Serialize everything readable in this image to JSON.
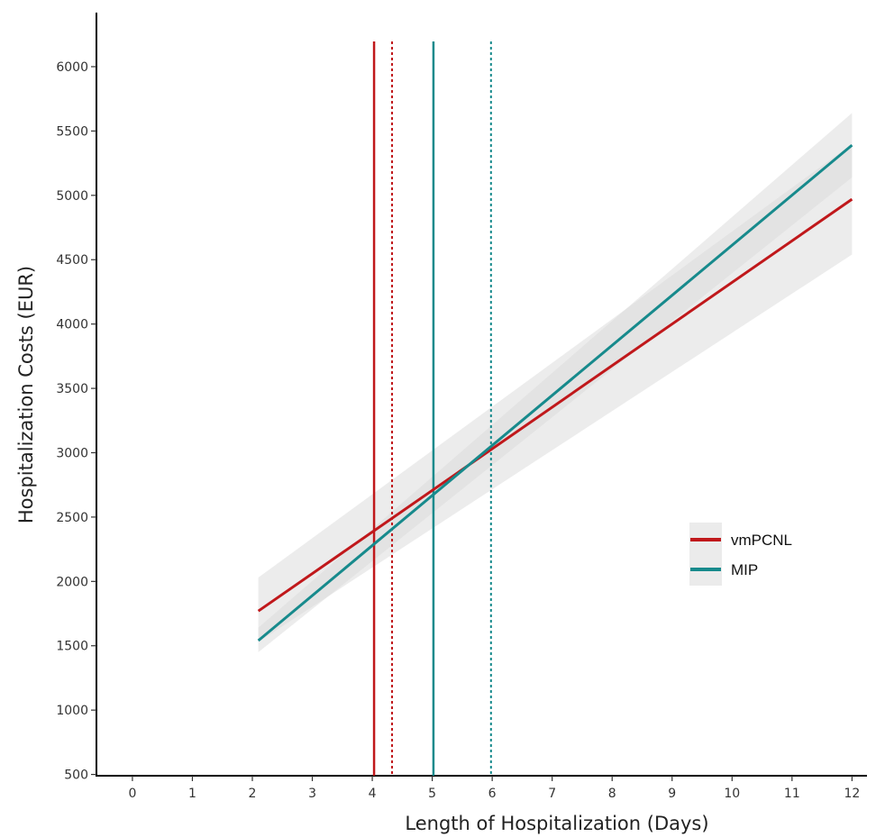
{
  "chart_data": {
    "type": "line",
    "xlabel": "Length of Hospitalization (Days)",
    "ylabel": "Hospitalization Costs (EUR)",
    "xlim": [
      -0.6,
      12.25
    ],
    "ylim": [
      490,
      6420
    ],
    "x_ticks": [
      0,
      1,
      2,
      3,
      4,
      5,
      6,
      7,
      8,
      9,
      10,
      11,
      12
    ],
    "y_ticks": [
      500,
      1000,
      1500,
      2000,
      2500,
      3000,
      3500,
      4000,
      4500,
      5000,
      5500,
      6000
    ],
    "grid": false,
    "legend_position": "right",
    "series": [
      {
        "name": "vmPCNL",
        "color": "#c0181b",
        "x": [
          2.1,
          12
        ],
        "y": [
          1770,
          4970
        ],
        "ci_lower": [
          1530,
          4540
        ],
        "ci_upper": [
          2030,
          5400
        ],
        "vline_solid": 4.03,
        "vline_dotted": 4.33
      },
      {
        "name": "MIP",
        "color": "#178a8c",
        "x": [
          2.1,
          12
        ],
        "y": [
          1540,
          5390
        ],
        "ci_lower": [
          1450,
          5140
        ],
        "ci_upper": [
          1640,
          5640
        ],
        "vline_solid": 5.02,
        "vline_dotted": 5.98
      }
    ]
  }
}
